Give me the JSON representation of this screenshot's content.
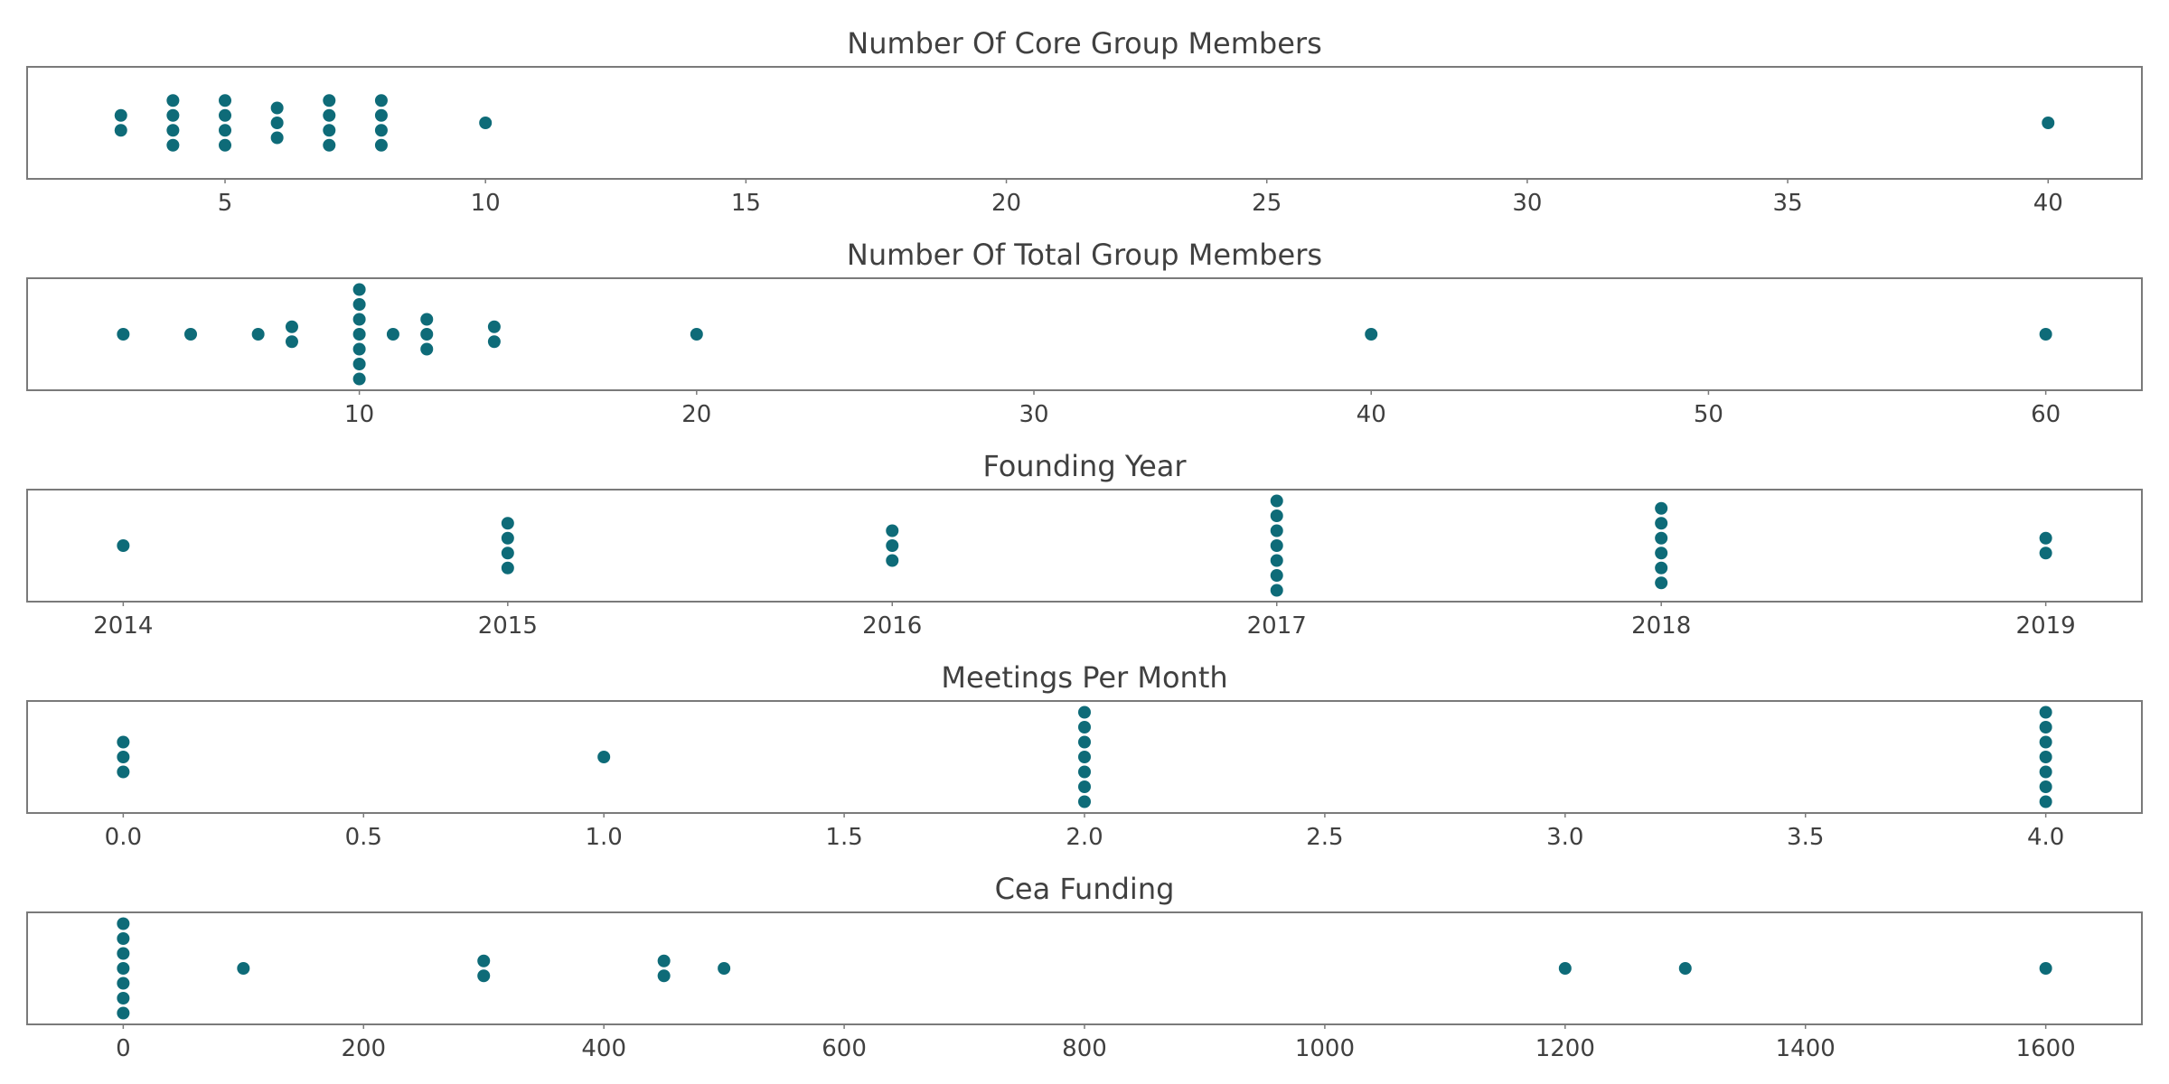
{
  "colors": {
    "marker": "#0e6b78",
    "frame": "#7a7a7a",
    "text": "#404040"
  },
  "chart_data": [
    {
      "type": "scatter",
      "subtype": "swarm",
      "title": "Number Of Core Group Members",
      "xlim": [
        1.2,
        41.8
      ],
      "xticks": [
        5,
        10,
        15,
        20,
        25,
        30,
        35,
        40
      ],
      "xticklabels": [
        "5",
        "10",
        "15",
        "20",
        "25",
        "30",
        "35",
        "40"
      ],
      "grid": false,
      "values": [
        3,
        3,
        4,
        4,
        4,
        4,
        5,
        5,
        5,
        5,
        6,
        6,
        6,
        7,
        7,
        7,
        7,
        8,
        8,
        8,
        8,
        10,
        40
      ]
    },
    {
      "type": "scatter",
      "subtype": "swarm",
      "title": "Number Of Total Group Members",
      "xlim": [
        0.15,
        62.85
      ],
      "xticks": [
        10,
        20,
        30,
        40,
        50,
        60
      ],
      "xticklabels": [
        "10",
        "20",
        "30",
        "40",
        "50",
        "60"
      ],
      "grid": false,
      "values": [
        3,
        5,
        7,
        8,
        8,
        10,
        10,
        10,
        10,
        10,
        10,
        10,
        11,
        12,
        12,
        12,
        14,
        14,
        20,
        40,
        60
      ]
    },
    {
      "type": "scatter",
      "subtype": "swarm",
      "title": "Founding Year",
      "xlim": [
        2013.75,
        2019.25
      ],
      "xticks": [
        2014,
        2015,
        2016,
        2017,
        2018,
        2019
      ],
      "xticklabels": [
        "2014",
        "2015",
        "2016",
        "2017",
        "2018",
        "2019"
      ],
      "grid": false,
      "values": [
        2014,
        2015,
        2015,
        2015,
        2015,
        2016,
        2016,
        2016,
        2017,
        2017,
        2017,
        2017,
        2017,
        2017,
        2017,
        2018,
        2018,
        2018,
        2018,
        2018,
        2018,
        2019,
        2019
      ]
    },
    {
      "type": "scatter",
      "subtype": "swarm",
      "title": "Meetings Per Month",
      "xlim": [
        -0.2,
        4.2
      ],
      "xticks": [
        0,
        0.5,
        1,
        1.5,
        2,
        2.5,
        3,
        3.5,
        4
      ],
      "xticklabels": [
        "0.0",
        "0.5",
        "1.0",
        "1.5",
        "2.0",
        "2.5",
        "3.0",
        "3.5",
        "4.0"
      ],
      "grid": false,
      "values": [
        0,
        0,
        0,
        1,
        2,
        2,
        2,
        2,
        2,
        2,
        2,
        4,
        4,
        4,
        4,
        4,
        4,
        4
      ]
    },
    {
      "type": "scatter",
      "subtype": "swarm",
      "title": "Cea Funding",
      "xlim": [
        -80,
        1680
      ],
      "xticks": [
        0,
        200,
        400,
        600,
        800,
        1000,
        1200,
        1400,
        1600
      ],
      "xticklabels": [
        "0",
        "200",
        "400",
        "600",
        "800",
        "1000",
        "1200",
        "1400",
        "1600"
      ],
      "grid": false,
      "values": [
        0,
        0,
        0,
        0,
        0,
        0,
        0,
        100,
        300,
        300,
        450,
        450,
        500,
        1200,
        1300,
        1600
      ]
    }
  ]
}
